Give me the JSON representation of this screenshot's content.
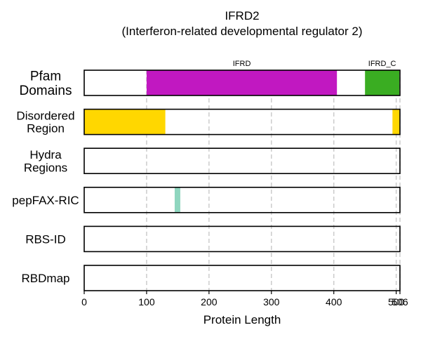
{
  "chart_data": {
    "type": "bar",
    "title": "IFRD2",
    "subtitle": "(Interferon-related developmental regulator 2)",
    "xlabel": "Protein Length",
    "xlim": [
      0,
      506
    ],
    "xticks": [
      0,
      100,
      200,
      300,
      400,
      500,
      506
    ],
    "grid": true,
    "tracks": [
      {
        "name": "Pfam\nDomains",
        "segments": [
          {
            "start": 100,
            "end": 405,
            "label": "IFRD",
            "color": "#c118c1"
          },
          {
            "start": 450,
            "end": 505,
            "label": "IFRD_C",
            "color": "#3aad22"
          }
        ]
      },
      {
        "name": "Disordered\nRegion",
        "segments": [
          {
            "start": 0,
            "end": 130,
            "label": "",
            "color": "#ffd700"
          },
          {
            "start": 494,
            "end": 506,
            "label": "",
            "color": "#ffd700"
          }
        ]
      },
      {
        "name": "Hydra\nRegions",
        "segments": []
      },
      {
        "name": "pepFAX-RIC",
        "segments": [
          {
            "start": 145,
            "end": 154,
            "label": "",
            "color": "#8fd6bf"
          }
        ]
      },
      {
        "name": "RBS-ID",
        "segments": []
      },
      {
        "name": "RBDmap",
        "segments": []
      }
    ]
  }
}
